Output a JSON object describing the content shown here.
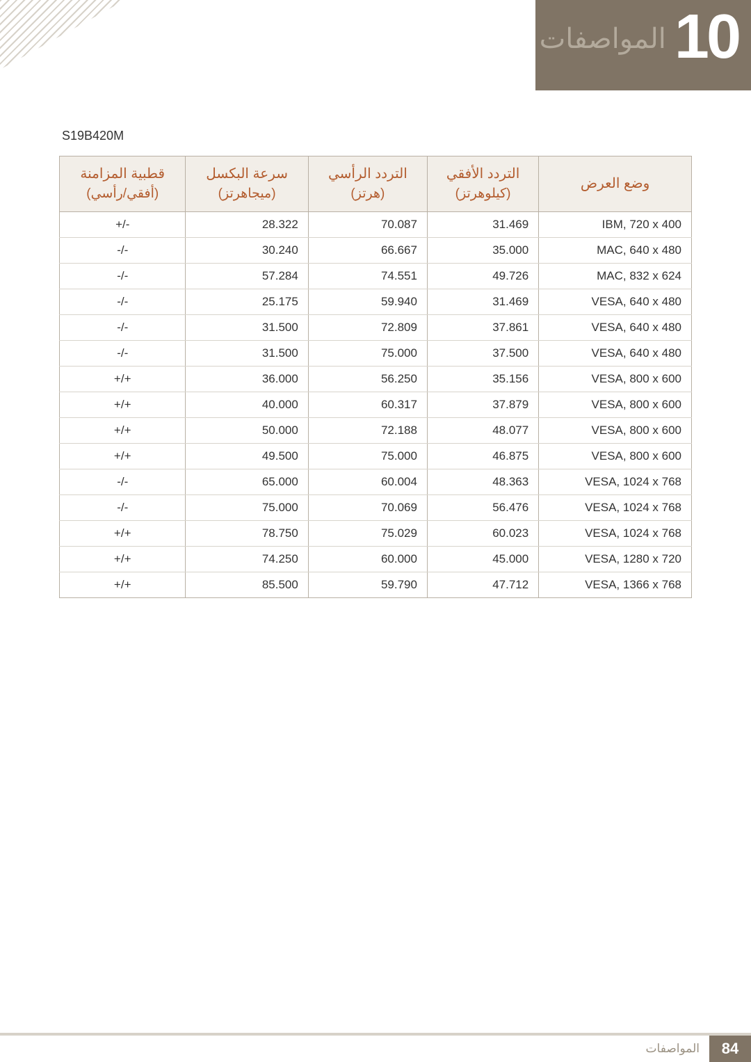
{
  "chapter": {
    "number": "10",
    "title": "المواصفات"
  },
  "model": "S19B420M",
  "table": {
    "headers": [
      {
        "main": "وضع العرض",
        "sub": ""
      },
      {
        "main": "التردد الأفقي",
        "sub": "(كيلوهرتز)"
      },
      {
        "main": "التردد الرأسي",
        "sub": "(هرتز)"
      },
      {
        "main": "سرعة البكسل",
        "sub": "(ميجاهرتز)"
      },
      {
        "main": "قطبية المزامنة",
        "sub": "(أفقي/رأسي)"
      }
    ],
    "rows": [
      {
        "mode": "IBM, 720 x 400",
        "h": "31.469",
        "v": "70.087",
        "p": "28.322",
        "pol": "+/-"
      },
      {
        "mode": "MAC, 640 x 480",
        "h": "35.000",
        "v": "66.667",
        "p": "30.240",
        "pol": "-/-"
      },
      {
        "mode": "MAC, 832 x 624",
        "h": "49.726",
        "v": "74.551",
        "p": "57.284",
        "pol": "-/-"
      },
      {
        "mode": "VESA, 640 x 480",
        "h": "31.469",
        "v": "59.940",
        "p": "25.175",
        "pol": "-/-"
      },
      {
        "mode": "VESA, 640 x 480",
        "h": "37.861",
        "v": "72.809",
        "p": "31.500",
        "pol": "-/-"
      },
      {
        "mode": "VESA, 640 x 480",
        "h": "37.500",
        "v": "75.000",
        "p": "31.500",
        "pol": "-/-"
      },
      {
        "mode": "VESA, 800 x 600",
        "h": "35.156",
        "v": "56.250",
        "p": "36.000",
        "pol": "+/+"
      },
      {
        "mode": "VESA, 800 x 600",
        "h": "37.879",
        "v": "60.317",
        "p": "40.000",
        "pol": "+/+"
      },
      {
        "mode": "VESA, 800 x 600",
        "h": "48.077",
        "v": "72.188",
        "p": "50.000",
        "pol": "+/+"
      },
      {
        "mode": "VESA, 800 x 600",
        "h": "46.875",
        "v": "75.000",
        "p": "49.500",
        "pol": "+/+"
      },
      {
        "mode": "VESA, 1024 x 768",
        "h": "48.363",
        "v": "60.004",
        "p": "65.000",
        "pol": "-/-"
      },
      {
        "mode": "VESA, 1024 x 768",
        "h": "56.476",
        "v": "70.069",
        "p": "75.000",
        "pol": "-/-"
      },
      {
        "mode": "VESA, 1024 x 768",
        "h": "60.023",
        "v": "75.029",
        "p": "78.750",
        "pol": "+/+"
      },
      {
        "mode": "VESA, 1280 x 720",
        "h": "45.000",
        "v": "60.000",
        "p": "74.250",
        "pol": "+/+"
      },
      {
        "mode": "VESA, 1366 x 768",
        "h": "47.712",
        "v": "59.790",
        "p": "85.500",
        "pol": "+/+"
      }
    ],
    "col_widths": [
      "30%",
      "15%",
      "15%",
      "15%",
      "15%"
    ]
  },
  "footer": {
    "page": "84",
    "title": "المواصفات"
  }
}
